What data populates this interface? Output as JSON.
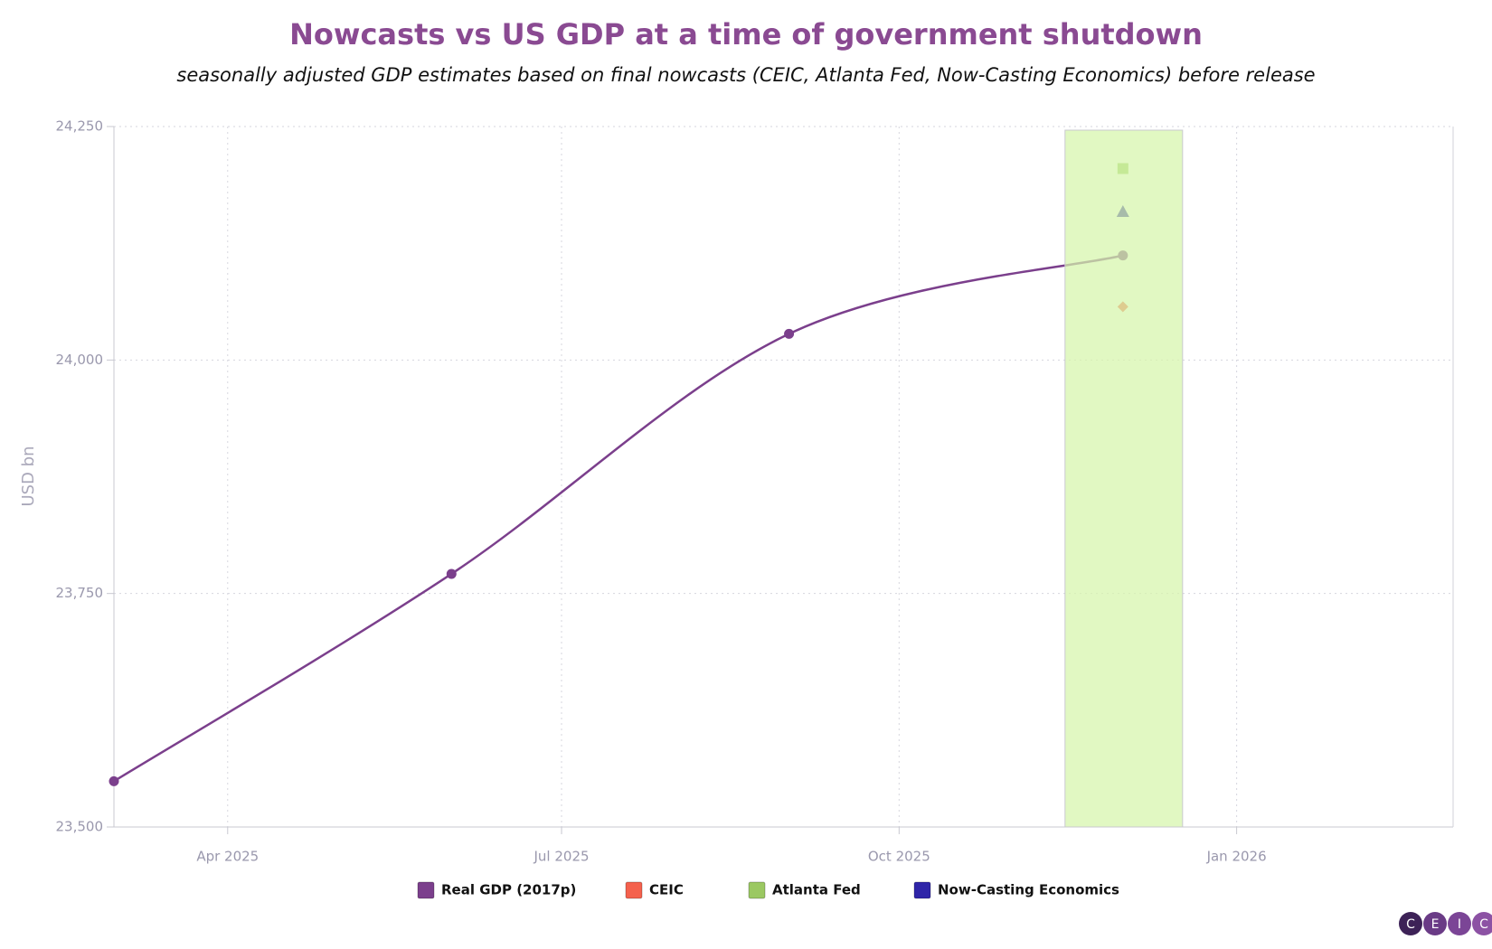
{
  "chart_data": {
    "type": "line",
    "title": "Nowcasts vs US GDP at a time of government shutdown",
    "subtitle": "seasonally adjusted GDP estimates based on final nowcasts (CEIC, Atlanta Fed, Now-Casting Economics) before release",
    "y_label": "USD bn",
    "x": [
      "2025-03",
      "2025-06",
      "2025-09",
      "2025-12"
    ],
    "xlim": [
      "2025-03",
      "2026-03"
    ],
    "xticks": [
      {
        "value": "2025-04",
        "label": "Apr 2025"
      },
      {
        "value": "2025-07",
        "label": "Jul 2025"
      },
      {
        "value": "2025-10",
        "label": "Oct 2025"
      },
      {
        "value": "2026-01",
        "label": "Jan 2026"
      }
    ],
    "ylim": [
      23500,
      24250
    ],
    "yticks": [
      {
        "value": 23500,
        "label": "23,500"
      },
      {
        "value": 23750,
        "label": "23,750"
      },
      {
        "value": 24000,
        "label": "24,000"
      },
      {
        "value": 24250,
        "label": "24,250"
      }
    ],
    "grid": true,
    "legend": "bottom",
    "series": [
      {
        "name": "Real GDP (2017p)",
        "color": "#7b3f8c",
        "marker": "circle",
        "values": [
          23549,
          23771,
          24028,
          24112
        ]
      },
      {
        "name": "CEIC",
        "color": "#f4614d",
        "marker": "diamond",
        "values": [
          null,
          null,
          null,
          24057
        ]
      },
      {
        "name": "Atlanta Fed",
        "color": "#9bc862",
        "marker": "square",
        "values": [
          null,
          null,
          null,
          24205
        ]
      },
      {
        "name": "Now-Casting Economics",
        "color": "#2f25a8",
        "marker": "triangle",
        "values": [
          null,
          null,
          null,
          24159
        ]
      }
    ],
    "logo": [
      "C",
      "E",
      "I",
      "C"
    ]
  }
}
